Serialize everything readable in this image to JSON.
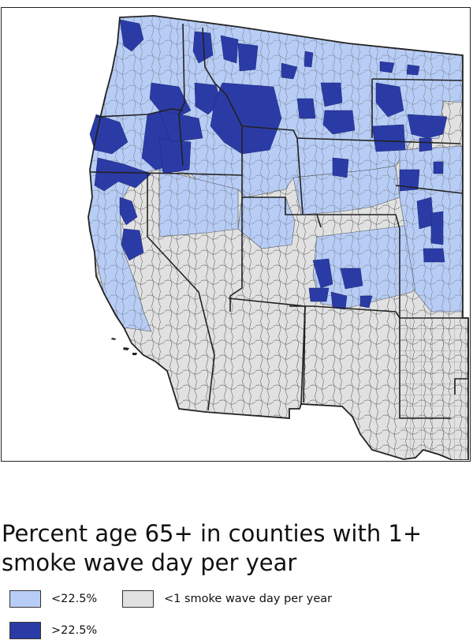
{
  "legend": {
    "title": "Percent age 65+ in counties with 1+ smoke wave day per year",
    "items": [
      {
        "label": "<22.5%",
        "color": "#b7cdf6"
      },
      {
        "label": ">22.5%",
        "color": "#2b3ba6"
      },
      {
        "label": "<1 smoke wave day per year",
        "color": "#e1e1e1"
      }
    ]
  },
  "colors": {
    "low": "#b7cdf6",
    "high": "#2b3ba6",
    "none": "#e1e1e1",
    "county_border": "#555555",
    "state_border": "#222222",
    "frame": "#222222"
  }
}
